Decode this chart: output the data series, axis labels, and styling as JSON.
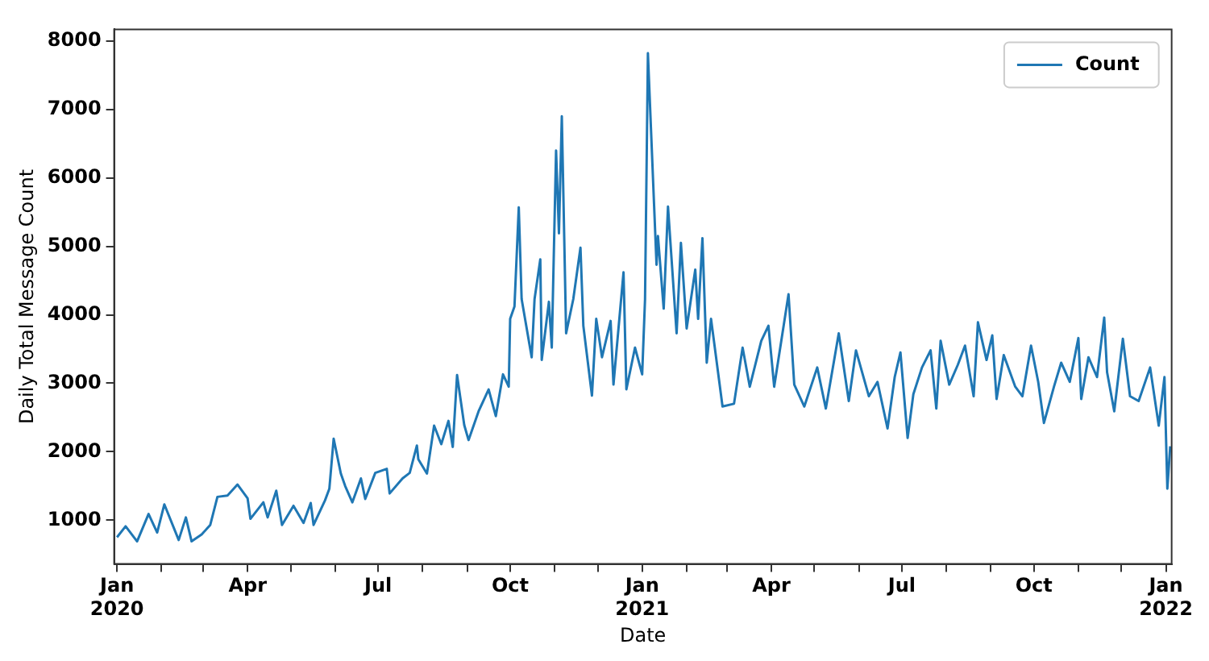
{
  "chart_data": {
    "type": "line",
    "xlabel": "Date",
    "ylabel": "Daily Total Message Count",
    "xlim": [
      "2019-12-30",
      "2022-01-05"
    ],
    "xticks": [
      {
        "value": "2020-01-01",
        "label": "Jan\n2020"
      },
      {
        "value": "2020-02-01",
        "label": null
      },
      {
        "value": "2020-03-01",
        "label": null
      },
      {
        "value": "2020-04-01",
        "label": "Apr"
      },
      {
        "value": "2020-05-01",
        "label": null
      },
      {
        "value": "2020-06-01",
        "label": null
      },
      {
        "value": "2020-07-01",
        "label": "Jul"
      },
      {
        "value": "2020-08-01",
        "label": null
      },
      {
        "value": "2020-09-01",
        "label": null
      },
      {
        "value": "2020-10-01",
        "label": "Oct"
      },
      {
        "value": "2020-11-01",
        "label": null
      },
      {
        "value": "2020-12-01",
        "label": null
      },
      {
        "value": "2021-01-01",
        "label": "Jan\n2021"
      },
      {
        "value": "2021-02-01",
        "label": null
      },
      {
        "value": "2021-03-01",
        "label": null
      },
      {
        "value": "2021-04-01",
        "label": "Apr"
      },
      {
        "value": "2021-05-01",
        "label": null
      },
      {
        "value": "2021-06-01",
        "label": null
      },
      {
        "value": "2021-07-01",
        "label": "Jul"
      },
      {
        "value": "2021-08-01",
        "label": null
      },
      {
        "value": "2021-09-01",
        "label": null
      },
      {
        "value": "2021-10-01",
        "label": "Oct"
      },
      {
        "value": "2021-11-01",
        "label": null
      },
      {
        "value": "2021-12-01",
        "label": null
      },
      {
        "value": "2022-01-01",
        "label": "Jan\n2022"
      }
    ],
    "ylim": [
      360,
      8170
    ],
    "yticks": [
      1000,
      2000,
      3000,
      4000,
      5000,
      6000,
      7000,
      8000
    ],
    "legend": "top right",
    "grid": false,
    "marker": "none",
    "line_style": "solid",
    "x": [
      "2020-01-01",
      "2020-01-07",
      "2020-01-15",
      "2020-01-23",
      "2020-01-29",
      "2020-02-03",
      "2020-02-13",
      "2020-02-18",
      "2020-02-22",
      "2020-02-29",
      "2020-03-06",
      "2020-03-11",
      "2020-03-18",
      "2020-03-25",
      "2020-04-01",
      "2020-04-03",
      "2020-04-12",
      "2020-04-15",
      "2020-04-21",
      "2020-04-25",
      "2020-05-03",
      "2020-05-10",
      "2020-05-15",
      "2020-05-17",
      "2020-05-25",
      "2020-05-28",
      "2020-05-31",
      "2020-06-05",
      "2020-06-08",
      "2020-06-13",
      "2020-06-19",
      "2020-06-22",
      "2020-06-29",
      "2020-07-07",
      "2020-07-09",
      "2020-07-18",
      "2020-07-23",
      "2020-07-28",
      "2020-07-29",
      "2020-08-04",
      "2020-08-09",
      "2020-08-14",
      "2020-08-19",
      "2020-08-22",
      "2020-08-25",
      "2020-08-30",
      "2020-09-02",
      "2020-09-09",
      "2020-09-16",
      "2020-09-21",
      "2020-09-26",
      "2020-09-30",
      "2020-10-01",
      "2020-10-04",
      "2020-10-07",
      "2020-10-09",
      "2020-10-16",
      "2020-10-18",
      "2020-10-22",
      "2020-10-23",
      "2020-10-28",
      "2020-10-30",
      "2020-11-02",
      "2020-11-04",
      "2020-11-06",
      "2020-11-09",
      "2020-11-14",
      "2020-11-19",
      "2020-11-21",
      "2020-11-27",
      "2020-11-30",
      "2020-12-04",
      "2020-12-10",
      "2020-12-12",
      "2020-12-19",
      "2020-12-21",
      "2020-12-27",
      "2021-01-01",
      "2021-01-03",
      "2021-01-05",
      "2021-01-11",
      "2021-01-12",
      "2021-01-16",
      "2021-01-19",
      "2021-01-25",
      "2021-01-28",
      "2021-02-01",
      "2021-02-07",
      "2021-02-09",
      "2021-02-12",
      "2021-02-15",
      "2021-02-18",
      "2021-02-26",
      "2021-03-06",
      "2021-03-12",
      "2021-03-17",
      "2021-03-25",
      "2021-03-30",
      "2021-04-03",
      "2021-04-13",
      "2021-04-17",
      "2021-04-24",
      "2021-05-03",
      "2021-05-09",
      "2021-05-18",
      "2021-05-25",
      "2021-05-30",
      "2021-06-08",
      "2021-06-14",
      "2021-06-21",
      "2021-06-26",
      "2021-06-30",
      "2021-07-05",
      "2021-07-09",
      "2021-07-15",
      "2021-07-21",
      "2021-07-25",
      "2021-07-28",
      "2021-08-03",
      "2021-08-09",
      "2021-08-14",
      "2021-08-20",
      "2021-08-23",
      "2021-08-29",
      "2021-09-02",
      "2021-09-05",
      "2021-09-10",
      "2021-09-18",
      "2021-09-23",
      "2021-09-29",
      "2021-10-04",
      "2021-10-08",
      "2021-10-15",
      "2021-10-20",
      "2021-10-26",
      "2021-11-01",
      "2021-11-03",
      "2021-11-08",
      "2021-11-14",
      "2021-11-19",
      "2021-11-21",
      "2021-11-26",
      "2021-12-02",
      "2021-12-07",
      "2021-12-13",
      "2021-12-21",
      "2021-12-27",
      "2021-12-31",
      "2022-01-02",
      "2022-01-04"
    ],
    "series": [
      {
        "name": "Count",
        "color": "#1f77b4",
        "values": [
          750,
          910,
          690,
          1090,
          820,
          1230,
          710,
          1040,
          690,
          790,
          930,
          1340,
          1360,
          1520,
          1320,
          1020,
          1260,
          1040,
          1430,
          930,
          1210,
          960,
          1250,
          930,
          1290,
          1460,
          2190,
          1680,
          1500,
          1260,
          1610,
          1310,
          1690,
          1750,
          1390,
          1610,
          1690,
          2090,
          1890,
          1680,
          2380,
          2110,
          2450,
          2070,
          3120,
          2390,
          2170,
          2590,
          2910,
          2520,
          3130,
          2950,
          3940,
          4120,
          5570,
          4230,
          3380,
          4230,
          4810,
          3340,
          4190,
          3520,
          6400,
          5190,
          6900,
          3730,
          4230,
          4980,
          3840,
          2820,
          3940,
          3380,
          3910,
          2980,
          4620,
          2910,
          3520,
          3130,
          4230,
          7820,
          4730,
          5150,
          4090,
          5580,
          3730,
          5050,
          3800,
          4660,
          3940,
          5120,
          3300,
          3940,
          2660,
          2700,
          3520,
          2950,
          3620,
          3840,
          2950,
          4300,
          2980,
          2660,
          3230,
          2630,
          3730,
          2740,
          3480,
          2810,
          3020,
          2340,
          3090,
          3450,
          2200,
          2840,
          3230,
          3480,
          2630,
          3620,
          2980,
          3270,
          3550,
          2810,
          3890,
          3340,
          3700,
          2770,
          3410,
          2950,
          2810,
          3550,
          3020,
          2420,
          2950,
          3300,
          3020,
          3660,
          2770,
          3380,
          3090,
          3960,
          3160,
          2590,
          3650,
          2810,
          2740,
          3230,
          2380,
          3090,
          1460,
          2080
        ]
      }
    ]
  }
}
